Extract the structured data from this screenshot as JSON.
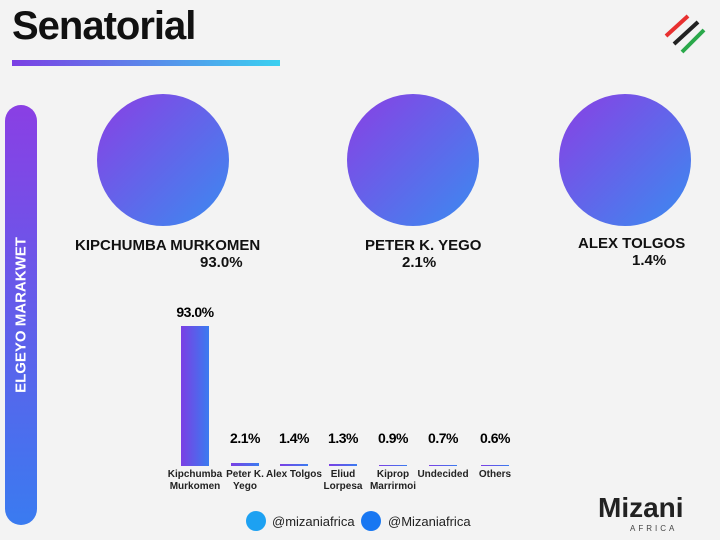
{
  "title": "Senatorial",
  "region": "ELGEYO MARAKWET",
  "candidates": [
    {
      "name": "KIPCHUMBA MURKOMEN",
      "share": "93.0%"
    },
    {
      "name": "PETER K. YEGO",
      "share": "2.1%"
    },
    {
      "name": "ALEX TOLGOS",
      "share": "1.4%"
    }
  ],
  "chart_data": {
    "type": "bar",
    "categories": [
      "Kipchumba Murkomen",
      "Peter K. Yego",
      "Alex Tolgos",
      "Eliud Lorpesa",
      "Kiprop Marrirmoi",
      "Undecided",
      "Others"
    ],
    "values": [
      93.0,
      2.1,
      1.4,
      1.3,
      0.9,
      0.7,
      0.6
    ],
    "value_labels": [
      "93.0%",
      "2.1%",
      "1.4%",
      "1.3%",
      "0.9%",
      "0.7%",
      "0.6%"
    ],
    "color": [
      "#7b3fe4",
      "#3a7bf0"
    ]
  },
  "footer": {
    "twitter": "@mizaniafrica",
    "facebook": "@Mizaniafrica",
    "logo": "Mizani",
    "logo_sub": "AFRICA"
  }
}
